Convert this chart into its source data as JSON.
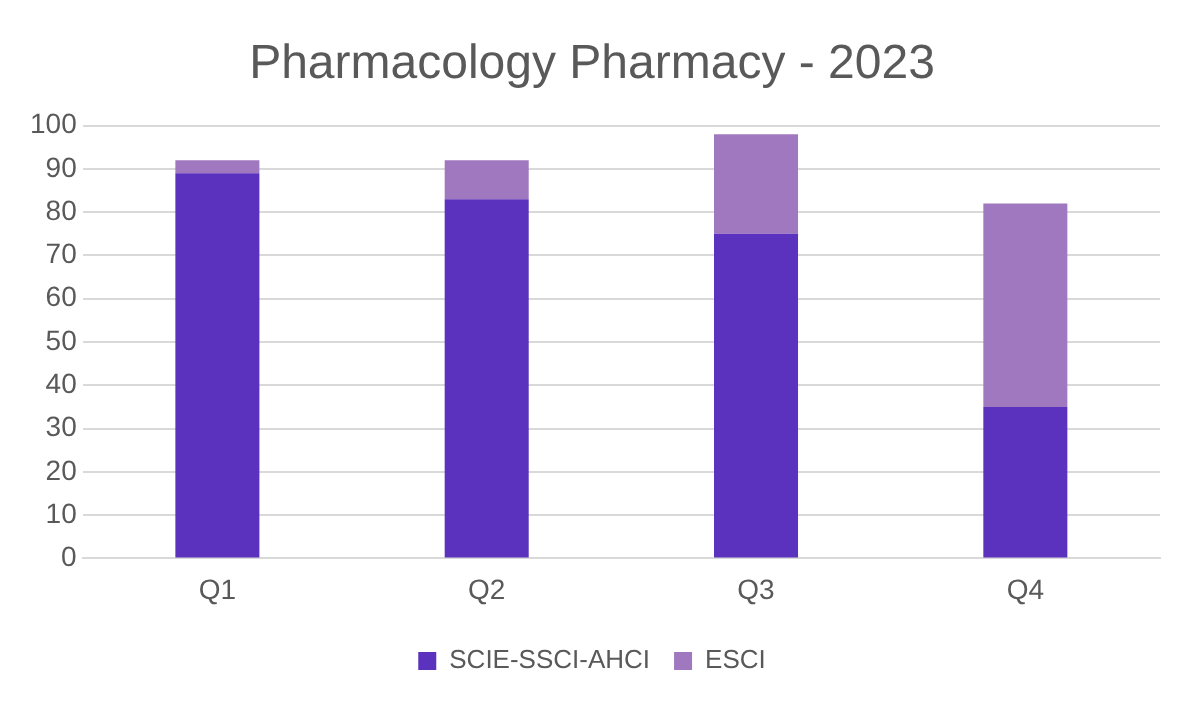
{
  "chart_data": {
    "type": "bar",
    "title": "Pharmacology Pharmacy - 2023",
    "categories": [
      "Q1",
      "Q2",
      "Q3",
      "Q4"
    ],
    "series": [
      {
        "name": "SCIE-SSCI-AHCI",
        "color": "#5b32bd",
        "values": [
          89,
          83,
          75,
          35
        ]
      },
      {
        "name": "ESCI",
        "color": "#a078bf",
        "values": [
          3,
          9,
          23,
          47
        ]
      }
    ],
    "stacked": true,
    "ylim": [
      0,
      100
    ],
    "yticks": [
      0,
      10,
      20,
      30,
      40,
      50,
      60,
      70,
      80,
      90,
      100
    ],
    "grid": "y",
    "legend": "bottom"
  }
}
